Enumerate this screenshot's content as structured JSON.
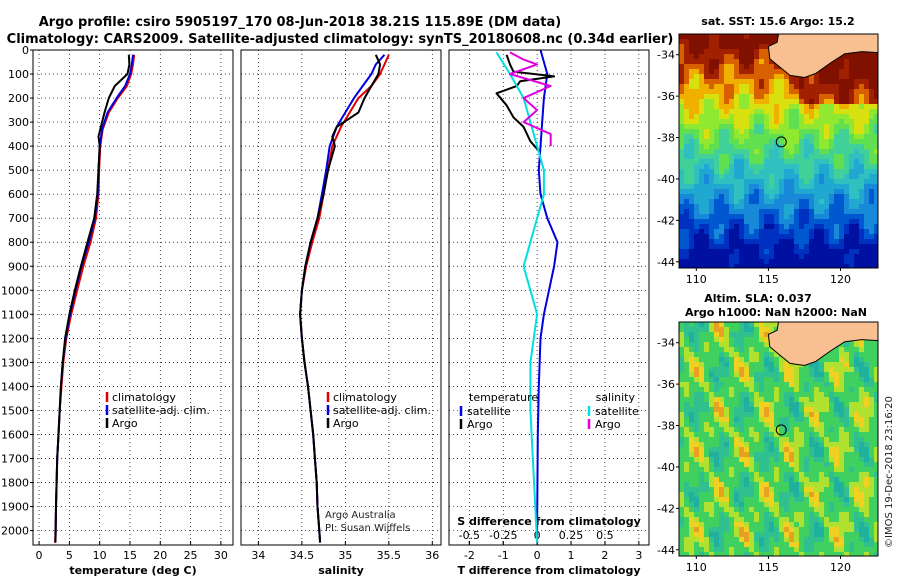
{
  "title_line1": "Argo profile: csiro 5905197_170 08-Jun-2018 38.21S 115.89E (DM data)",
  "title_line2": "Climatology: CARS2009. Satellite-adjusted climatology: synTS_20180608.nc (0.34d earlier)",
  "credit_argo": "Argo Australia",
  "credit_pi": "PI: Susan Wijffels",
  "timestamp": "©IMOS 19-Dec-2018 23:16:20",
  "colors": {
    "climatology": "#e00000",
    "satellite": "#0000e0",
    "argo": "#000000",
    "sat_salinity": "#00e0e0",
    "argo_salinity": "#e000e0"
  },
  "chart_data": [
    {
      "type": "line",
      "id": "temperature",
      "xlabel": "temperature (deg C)",
      "ylabel": "",
      "xlim": [
        -1,
        32
      ],
      "ylim": [
        0,
        2060
      ],
      "xticks": [
        "0",
        "5",
        "10",
        "15",
        "20",
        "25",
        "30"
      ],
      "yticks": [
        "0",
        "100",
        "200",
        "300",
        "400",
        "500",
        "600",
        "700",
        "800",
        "900",
        "1000",
        "1100",
        "1200",
        "1300",
        "1400",
        "1500",
        "1600",
        "1700",
        "1800",
        "1900",
        "2000"
      ],
      "grid": true,
      "legend": [
        "climatology",
        "satellite-adj. clim.",
        "Argo"
      ],
      "series": [
        {
          "name": "climatology",
          "color": "climatology",
          "points": [
            [
              15.7,
              20
            ],
            [
              15.5,
              60
            ],
            [
              15.2,
              100
            ],
            [
              14.5,
              150
            ],
            [
              13,
              200
            ],
            [
              11.5,
              260
            ],
            [
              10.5,
              330
            ],
            [
              10.1,
              400
            ],
            [
              9.9,
              500
            ],
            [
              9.8,
              600
            ],
            [
              9.4,
              700
            ],
            [
              8.5,
              800
            ],
            [
              7.3,
              900
            ],
            [
              6.3,
              1000
            ],
            [
              5.3,
              1100
            ],
            [
              4.5,
              1200
            ],
            [
              4.0,
              1300
            ],
            [
              3.7,
              1400
            ],
            [
              3.4,
              1500
            ],
            [
              3.2,
              1600
            ],
            [
              3.0,
              1700
            ],
            [
              2.9,
              1800
            ],
            [
              2.8,
              1900
            ],
            [
              2.7,
              2000
            ],
            [
              2.65,
              2050
            ]
          ]
        },
        {
          "name": "satellite-adj. clim.",
          "color": "satellite",
          "points": [
            [
              15.5,
              20
            ],
            [
              15.3,
              60
            ],
            [
              15.0,
              100
            ],
            [
              14.2,
              150
            ],
            [
              12.8,
              200
            ],
            [
              11.3,
              260
            ],
            [
              10.4,
              330
            ],
            [
              10.0,
              400
            ],
            [
              9.8,
              500
            ],
            [
              9.7,
              600
            ],
            [
              9.2,
              700
            ],
            [
              8.2,
              800
            ],
            [
              7.0,
              900
            ],
            [
              6.0,
              1000
            ],
            [
              5.1,
              1100
            ],
            [
              4.4,
              1200
            ],
            [
              3.9,
              1300
            ],
            [
              3.6,
              1400
            ],
            [
              3.4,
              1500
            ],
            [
              3.2,
              1600
            ],
            [
              3.0,
              1700
            ],
            [
              2.9,
              1800
            ],
            [
              2.8,
              1900
            ],
            [
              2.75,
              2000
            ],
            [
              2.7,
              2050
            ]
          ]
        },
        {
          "name": "Argo",
          "color": "argo",
          "points": [
            [
              14.8,
              20
            ],
            [
              14.9,
              60
            ],
            [
              14.6,
              100
            ],
            [
              12.5,
              150
            ],
            [
              11.5,
              200
            ],
            [
              10.8,
              260
            ],
            [
              10.2,
              320
            ],
            [
              9.8,
              360
            ],
            [
              10.0,
              400
            ],
            [
              9.8,
              500
            ],
            [
              9.6,
              600
            ],
            [
              9.1,
              700
            ],
            [
              8.0,
              800
            ],
            [
              6.9,
              900
            ],
            [
              5.9,
              1000
            ],
            [
              5.0,
              1100
            ],
            [
              4.3,
              1200
            ],
            [
              3.9,
              1300
            ],
            [
              3.6,
              1400
            ],
            [
              3.4,
              1500
            ],
            [
              3.2,
              1600
            ],
            [
              3.0,
              1700
            ],
            [
              2.9,
              1800
            ],
            [
              2.8,
              1900
            ],
            [
              2.75,
              2000
            ],
            [
              2.7,
              2050
            ]
          ]
        }
      ]
    },
    {
      "type": "line",
      "id": "salinity",
      "xlabel": "salinity",
      "ylabel": "",
      "xlim": [
        33.8,
        36.1
      ],
      "ylim": [
        0,
        2060
      ],
      "xticks": [
        "34",
        "34.5",
        "35",
        "35.5",
        "36"
      ],
      "grid": true,
      "legend": [
        "climatology",
        "satellite-adj. clim.",
        "Argo"
      ],
      "series": [
        {
          "name": "climatology",
          "color": "climatology",
          "points": [
            [
              35.5,
              20
            ],
            [
              35.45,
              60
            ],
            [
              35.4,
              100
            ],
            [
              35.3,
              150
            ],
            [
              35.15,
              200
            ],
            [
              35.05,
              260
            ],
            [
              34.95,
              320
            ],
            [
              34.85,
              400
            ],
            [
              34.8,
              500
            ],
            [
              34.75,
              600
            ],
            [
              34.7,
              700
            ],
            [
              34.62,
              800
            ],
            [
              34.55,
              900
            ],
            [
              34.5,
              1000
            ],
            [
              34.48,
              1100
            ],
            [
              34.5,
              1200
            ],
            [
              34.53,
              1300
            ],
            [
              34.57,
              1400
            ],
            [
              34.6,
              1500
            ],
            [
              34.63,
              1600
            ],
            [
              34.65,
              1700
            ],
            [
              34.67,
              1800
            ],
            [
              34.68,
              1900
            ],
            [
              34.7,
              2000
            ],
            [
              34.71,
              2050
            ]
          ]
        },
        {
          "name": "satellite-adj. clim.",
          "color": "satellite",
          "points": [
            [
              35.45,
              20
            ],
            [
              35.35,
              60
            ],
            [
              35.3,
              100
            ],
            [
              35.2,
              150
            ],
            [
              35.1,
              200
            ],
            [
              35.0,
              260
            ],
            [
              34.9,
              320
            ],
            [
              34.82,
              400
            ],
            [
              34.78,
              500
            ],
            [
              34.73,
              600
            ],
            [
              34.68,
              700
            ],
            [
              34.6,
              800
            ],
            [
              34.54,
              900
            ],
            [
              34.5,
              1000
            ],
            [
              34.48,
              1100
            ],
            [
              34.5,
              1200
            ],
            [
              34.53,
              1300
            ],
            [
              34.57,
              1400
            ],
            [
              34.6,
              1500
            ],
            [
              34.63,
              1600
            ],
            [
              34.65,
              1700
            ],
            [
              34.67,
              1800
            ],
            [
              34.68,
              1900
            ],
            [
              34.7,
              2000
            ],
            [
              34.71,
              2050
            ]
          ]
        },
        {
          "name": "Argo",
          "color": "argo",
          "points": [
            [
              35.35,
              20
            ],
            [
              35.4,
              60
            ],
            [
              35.38,
              100
            ],
            [
              35.3,
              150
            ],
            [
              35.22,
              200
            ],
            [
              35.15,
              260
            ],
            [
              34.9,
              320
            ],
            [
              34.85,
              360
            ],
            [
              34.88,
              400
            ],
            [
              34.8,
              500
            ],
            [
              34.75,
              600
            ],
            [
              34.68,
              700
            ],
            [
              34.6,
              800
            ],
            [
              34.54,
              900
            ],
            [
              34.5,
              1000
            ],
            [
              34.48,
              1100
            ],
            [
              34.5,
              1200
            ],
            [
              34.53,
              1300
            ],
            [
              34.57,
              1400
            ],
            [
              34.6,
              1500
            ],
            [
              34.63,
              1600
            ],
            [
              34.65,
              1700
            ],
            [
              34.67,
              1800
            ],
            [
              34.68,
              1900
            ],
            [
              34.7,
              2000
            ],
            [
              34.71,
              2050
            ]
          ]
        }
      ]
    },
    {
      "type": "line",
      "id": "difference",
      "xlabel": "T difference from climatology",
      "xlabel2": "S difference from climatology",
      "ylabel": "",
      "xlim": [
        -2.6,
        3.3
      ],
      "ylim": [
        0,
        2060
      ],
      "xticks": [
        "-2",
        "-1",
        "0",
        "1",
        "2",
        "3"
      ],
      "xticks2": [
        "-0.5",
        "-0.25",
        "0",
        "0.25",
        "0.5"
      ],
      "grid": true,
      "legend_left_title": "temperature",
      "legend_right_title": "salinity",
      "legend_left": [
        "satellite",
        "Argo"
      ],
      "legend_right": [
        "satellite",
        "Argo"
      ],
      "series": [
        {
          "name": "temperature satellite",
          "color": "satellite",
          "points": [
            [
              0.1,
              0
            ],
            [
              0.2,
              50
            ],
            [
              0.3,
              100
            ],
            [
              0.2,
              200
            ],
            [
              0.15,
              300
            ],
            [
              0.1,
              400
            ],
            [
              0.05,
              500
            ],
            [
              0.1,
              600
            ],
            [
              0.3,
              700
            ],
            [
              0.6,
              800
            ],
            [
              0.5,
              900
            ],
            [
              0.35,
              1000
            ],
            [
              0.2,
              1100
            ],
            [
              0.1,
              1200
            ],
            [
              0.05,
              1400
            ],
            [
              0.02,
              1600
            ],
            [
              0.0,
              2000
            ],
            [
              0.0,
              2050
            ]
          ]
        },
        {
          "name": "temperature Argo",
          "color": "argo",
          "points": [
            [
              -0.9,
              20
            ],
            [
              -0.8,
              60
            ],
            [
              -0.7,
              90
            ],
            [
              0.5,
              110
            ],
            [
              -0.5,
              130
            ],
            [
              -0.6,
              150
            ],
            [
              -1.2,
              180
            ],
            [
              -0.9,
              230
            ],
            [
              -0.7,
              280
            ],
            [
              -0.4,
              320
            ],
            [
              -0.2,
              380
            ],
            [
              0.05,
              420
            ]
          ]
        },
        {
          "name": "salinity satellite",
          "color": "sat_salinity",
          "points": [
            [
              -0.3,
              10
            ],
            [
              -0.2,
              100
            ],
            [
              -0.1,
              200
            ],
            [
              -0.05,
              300
            ],
            [
              0.0,
              400
            ],
            [
              0.05,
              500
            ],
            [
              0.05,
              600
            ],
            [
              0.0,
              700
            ],
            [
              -0.05,
              800
            ],
            [
              -0.1,
              900
            ],
            [
              -0.05,
              1000
            ],
            [
              0.0,
              1100
            ],
            [
              -0.05,
              1300
            ],
            [
              -0.05,
              1500
            ],
            [
              0.0,
              2050
            ]
          ]
        },
        {
          "name": "salinity Argo",
          "color": "argo_salinity",
          "points": [
            [
              -0.2,
              10
            ],
            [
              -0.1,
              40
            ],
            [
              0.0,
              60
            ],
            [
              -0.2,
              100
            ],
            [
              0.1,
              150
            ],
            [
              -0.1,
              200
            ],
            [
              0.0,
              250
            ],
            [
              -0.1,
              300
            ],
            [
              0.1,
              350
            ],
            [
              0.1,
              400
            ]
          ]
        }
      ]
    },
    {
      "type": "heatmap",
      "id": "sst-map",
      "title": "sat. SST: 15.6 Argo: 15.2",
      "xticks": [
        "110",
        "115",
        "120"
      ],
      "yticks": [
        "-34",
        "-36",
        "-38",
        "-40",
        "-42",
        "-44"
      ],
      "marker": {
        "lon": 115.89,
        "lat": -38.21
      }
    },
    {
      "type": "heatmap",
      "id": "sla-map",
      "title_line1": "Altim. SLA: 0.037",
      "title_line2": "Argo h1000: NaN h2000: NaN",
      "xticks": [
        "110",
        "115",
        "120"
      ],
      "yticks": [
        "-34",
        "-36",
        "-38",
        "-40",
        "-42",
        "-44"
      ],
      "marker": {
        "lon": 115.89,
        "lat": -38.21
      }
    }
  ]
}
